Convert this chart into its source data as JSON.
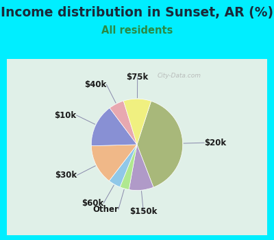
{
  "title": "Income distribution in Sunset, AR (%)",
  "subtitle": "All residents",
  "bg_outer": "#00eeff",
  "bg_inner_color": "#e0f0e8",
  "title_fontsize": 13.5,
  "title_color": "#1a2a3a",
  "subtitle_fontsize": 10.5,
  "subtitle_color": "#2a8a44",
  "watermark_text": "City-Data.com",
  "wedge_values": [
    36,
    8,
    3,
    4,
    13,
    14,
    5,
    9
  ],
  "wedge_colors": [
    "#a8b87a",
    "#b09ac8",
    "#b0e890",
    "#90c8e8",
    "#f0b888",
    "#8890d4",
    "#e8a8b0",
    "#f0f080"
  ],
  "wedge_labels": [
    "$20k",
    "$150k",
    "Other",
    "$60k",
    "$30k",
    "$10k",
    "$40k",
    "$75k"
  ],
  "startangle": 72,
  "label_fontsize": 8.5,
  "label_color": "#1a1a1a"
}
